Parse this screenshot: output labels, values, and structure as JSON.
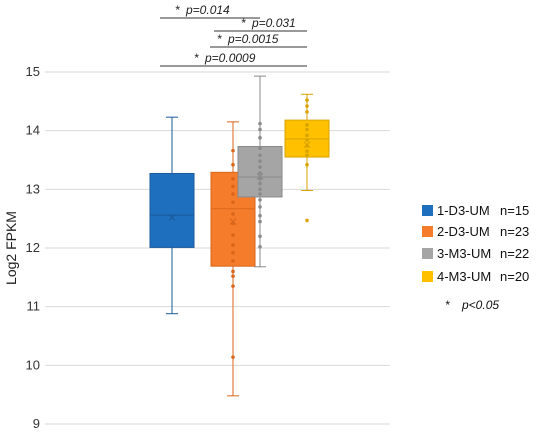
{
  "chart_data": {
    "type": "box",
    "ylabel": "Log2 FPKM",
    "ylim": [
      9,
      15
    ],
    "yticks": [
      9,
      10,
      11,
      12,
      13,
      14,
      15
    ],
    "grid": "horizontal",
    "legend_position": "right",
    "groups": [
      {
        "name": "1-D3-UM",
        "n_label": "n=15",
        "color": "#1f6fbf",
        "min": 10.88,
        "q1": 12.01,
        "median": 12.56,
        "q3": 13.27,
        "max": 14.23,
        "mean": 12.52,
        "points": []
      },
      {
        "name": "2-D3-UM",
        "n_label": "n=23",
        "color": "#f47c2a",
        "min": 9.48,
        "q1": 11.69,
        "median": 12.67,
        "q3": 13.29,
        "max": 14.15,
        "mean": 12.45,
        "points": [
          13.66,
          13.42,
          13.18,
          13.05,
          12.92,
          12.78,
          12.58,
          12.42,
          12.22,
          12.05,
          11.92,
          11.78,
          11.6,
          11.52,
          11.35,
          10.14
        ]
      },
      {
        "name": "3-M3-UM",
        "n_label": "n=22",
        "color": "#a5a5a5",
        "min": 11.68,
        "q1": 12.87,
        "median": 13.21,
        "q3": 13.73,
        "max": 14.93,
        "mean": 13.22,
        "points": [
          14.12,
          14.02,
          13.88,
          13.7,
          13.58,
          13.48,
          13.38,
          13.28,
          13.18,
          13.1,
          13.0,
          12.92,
          12.82,
          12.7,
          12.55,
          12.45,
          12.2,
          12.02
        ]
      },
      {
        "name": "4-M3-UM",
        "n_label": "n=20",
        "color": "#ffc000",
        "min": 12.98,
        "q1": 13.55,
        "median": 13.86,
        "q3": 14.18,
        "max": 14.62,
        "mean": 13.76,
        "points": [
          14.52,
          14.42,
          14.32,
          14.1,
          14.02,
          13.92,
          13.84,
          13.74,
          13.65,
          13.58,
          13.42,
          12.47
        ]
      }
    ],
    "comparisons": [
      {
        "from": 1,
        "to": 2,
        "star": "*",
        "p": "p=0.014"
      },
      {
        "from": 2,
        "to": 3,
        "star": "*",
        "p": "p=0.031"
      },
      {
        "from": 2,
        "to": 3,
        "star": "*",
        "p": "p=0.0015"
      },
      {
        "from": 1,
        "to": 3,
        "star": "*",
        "p": "p=0.0009"
      }
    ],
    "footnote": {
      "star": "*",
      "text": "p<0.05"
    }
  }
}
